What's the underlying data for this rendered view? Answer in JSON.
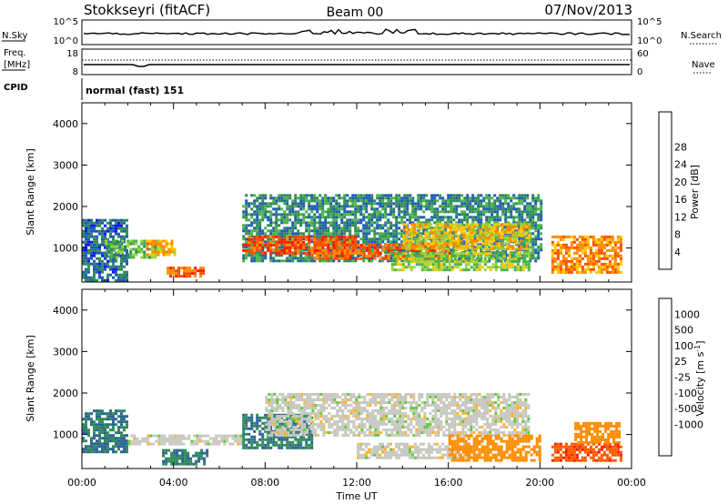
{
  "header": {
    "station": "Stokkseyri (fitACF)",
    "beam": "Beam 00",
    "date": "07/Nov/2013"
  },
  "strip": {
    "nsky_label": "N.Sky",
    "nsearch_label": "N.Search",
    "freq_label_1": "Freq.",
    "freq_label_2": "[MHz]",
    "nave_label": "Nave",
    "cpid_label": "CPID",
    "cpid_value": "normal (fast) 151",
    "noise_left_ticks": [
      "10^5",
      "10^0"
    ],
    "noise_right_ticks": [
      "10^5",
      "10^0"
    ],
    "freq_left_ticks": [
      "18",
      "8"
    ],
    "nave_right_ticks": [
      "60",
      "0"
    ]
  },
  "colors": {
    "power_scale": [
      "#1414ff",
      "#1e5ab4",
      "#2e8b57",
      "#48b448",
      "#a0d23c",
      "#ffc800",
      "#ff8c00",
      "#ff5000",
      "#ff1e00"
    ],
    "velocity_scale": [
      "#ff1e00",
      "#ff5a00",
      "#ff8c00",
      "#ffb428",
      "#c8c8c0",
      "#c8c8c0",
      "#60cc3c",
      "#2e8b57",
      "#2d6496",
      "#1e3cc8"
    ]
  },
  "chart_data": [
    {
      "type": "heatmap",
      "name": "power",
      "ylabel": "Slant Range [km]",
      "xlabel": "Time UT",
      "x_ticks": [
        "00:00",
        "04:00",
        "08:00",
        "12:00",
        "16:00",
        "20:00",
        "00:00"
      ],
      "xlim_hours": [
        0,
        24
      ],
      "y_ticks": [
        1000,
        2000,
        3000,
        4000
      ],
      "ylim": [
        180,
        4500
      ],
      "colorbar": {
        "label": "Power [dB]",
        "ticks": [
          "4",
          "8",
          "12",
          "16",
          "20",
          "24",
          "28"
        ],
        "range": [
          0,
          30
        ]
      },
      "features": [
        {
          "t0": 0.0,
          "t1": 2.0,
          "r0": 250,
          "r1": 1700,
          "value": 6
        },
        {
          "t0": 1.0,
          "t1": 3.3,
          "r0": 800,
          "r1": 1200,
          "value": 12
        },
        {
          "t0": 2.8,
          "t1": 4.0,
          "r0": 850,
          "r1": 1200,
          "value": 20
        },
        {
          "t0": 3.7,
          "t1": 5.3,
          "r0": 300,
          "r1": 550,
          "value": 24
        },
        {
          "t0": 7.0,
          "t1": 20.0,
          "r0": 700,
          "r1": 2300,
          "value": 8
        },
        {
          "t0": 7.0,
          "t1": 12.0,
          "r0": 850,
          "r1": 1300,
          "value": 26
        },
        {
          "t0": 10.0,
          "t1": 16.0,
          "r0": 750,
          "r1": 1100,
          "value": 24
        },
        {
          "t0": 14.0,
          "t1": 19.5,
          "r0": 1000,
          "r1": 1600,
          "value": 18
        },
        {
          "t0": 13.5,
          "t1": 19.5,
          "r0": 450,
          "r1": 900,
          "value": 14
        },
        {
          "t0": 20.5,
          "t1": 23.5,
          "r0": 400,
          "r1": 1300,
          "value": 22
        }
      ]
    },
    {
      "type": "heatmap",
      "name": "velocity",
      "ylabel": "Slant Range [km]",
      "xlabel": "Time UT",
      "x_ticks": [
        "00:00",
        "04:00",
        "08:00",
        "12:00",
        "16:00",
        "20:00",
        "00:00"
      ],
      "xlim_hours": [
        0,
        24
      ],
      "y_ticks": [
        1000,
        2000,
        3000,
        4000
      ],
      "ylim": [
        180,
        4500
      ],
      "colorbar": {
        "label": "Velocity [m s^-1]",
        "ticks": [
          "1000",
          "500",
          "100",
          "25",
          "-25",
          "-100",
          "-500",
          "-1000"
        ],
        "range": [
          -1000,
          1000
        ]
      },
      "features": [
        {
          "t0": 0.0,
          "t1": 2.0,
          "r0": 600,
          "r1": 1600,
          "value": 500
        },
        {
          "t0": 2.0,
          "t1": 7.0,
          "r0": 750,
          "r1": 1000,
          "value": 0
        },
        {
          "t0": 3.5,
          "t1": 5.5,
          "r0": 300,
          "r1": 650,
          "value": 500
        },
        {
          "t0": 7.0,
          "t1": 10.0,
          "r0": 700,
          "r1": 1500,
          "value": 500
        },
        {
          "t0": 8.0,
          "t1": 19.5,
          "r0": 950,
          "r1": 2000,
          "value": 0
        },
        {
          "t0": 12.0,
          "t1": 17.0,
          "r0": 450,
          "r1": 800,
          "value": 0
        },
        {
          "t0": 16.0,
          "t1": 20.0,
          "r0": 400,
          "r1": 1000,
          "value": -200
        },
        {
          "t0": 20.5,
          "t1": 23.5,
          "r0": 350,
          "r1": 800,
          "value": -900
        },
        {
          "t0": 21.5,
          "t1": 23.5,
          "r0": 800,
          "r1": 1300,
          "value": -200
        }
      ]
    }
  ]
}
